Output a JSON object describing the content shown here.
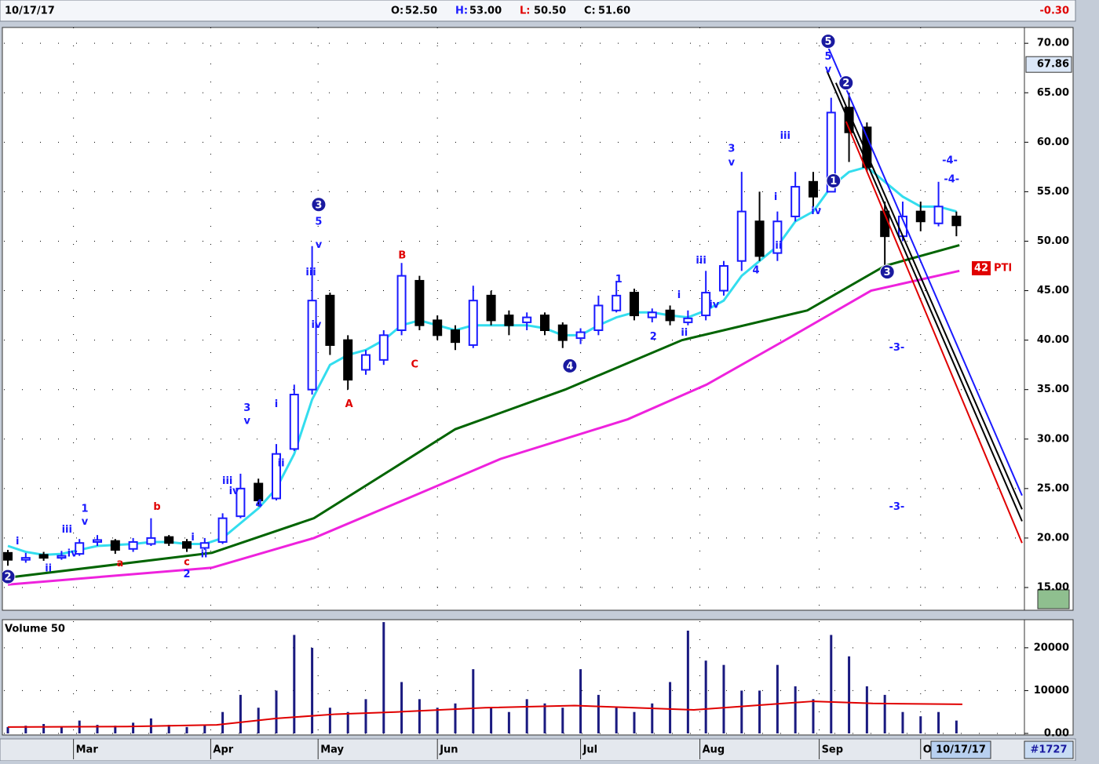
{
  "header": {
    "date": "10/17/17",
    "ohlc": [
      {
        "label": "O:",
        "value": "52.50",
        "color": "#000000"
      },
      {
        "label": "H:",
        "value": "53.00",
        "color": "#1a1aff"
      },
      {
        "label": "L:",
        "value": "50.50",
        "color": "#e00000"
      },
      {
        "label": "C:",
        "value": "51.60",
        "color": "#000000"
      }
    ],
    "change": "-0.30"
  },
  "chart_data": [
    {
      "type": "candlestick",
      "x": [
        0,
        3,
        6,
        9,
        12,
        15,
        18,
        21,
        24,
        27,
        30,
        33,
        36,
        39,
        42,
        45,
        48,
        51,
        54,
        57,
        60,
        63,
        66,
        69,
        72,
        75,
        78,
        81,
        84,
        87,
        90,
        93,
        96,
        99,
        102,
        105,
        108,
        111,
        114,
        117,
        120,
        123,
        126,
        129,
        132,
        135,
        138,
        141,
        144,
        147,
        150,
        153,
        156,
        159
      ],
      "open": [
        18.5,
        17.8,
        18.3,
        18.0,
        18.4,
        19.6,
        19.7,
        18.9,
        19.4,
        20.1,
        19.6,
        19.0,
        19.6,
        22.2,
        25.5,
        24.0,
        29.0,
        35.0,
        44.5,
        40.0,
        37.0,
        38.0,
        41.0,
        46.0,
        42.0,
        41.0,
        39.5,
        44.5,
        42.5,
        41.8,
        42.5,
        41.5,
        40.2,
        41.0,
        43.0,
        44.8,
        42.3,
        43.0,
        41.8,
        42.5,
        45.0,
        48.0,
        52.0,
        48.8,
        52.5,
        56.0,
        55.0,
        63.5,
        61.5,
        53.0,
        50.5,
        53.0,
        51.8,
        52.5
      ],
      "high": [
        18.8,
        18.5,
        18.6,
        18.7,
        19.9,
        20.3,
        19.9,
        20.0,
        22.0,
        20.3,
        19.9,
        20.0,
        22.5,
        26.5,
        26.0,
        29.5,
        35.5,
        49.5,
        44.8,
        40.5,
        39.0,
        41.0,
        47.8,
        46.5,
        42.5,
        41.5,
        45.5,
        45.0,
        43.0,
        42.8,
        42.8,
        41.8,
        41.2,
        44.5,
        46.0,
        45.2,
        43.2,
        43.5,
        43.0,
        47.0,
        48.0,
        57.0,
        55.0,
        53.0,
        57.0,
        57.0,
        64.5,
        65.0,
        62.0,
        54.0,
        54.0,
        54.0,
        56.0,
        53.0
      ],
      "low": [
        17.2,
        17.5,
        17.7,
        17.8,
        18.2,
        19.2,
        18.4,
        18.6,
        19.2,
        19.2,
        18.6,
        18.8,
        19.4,
        22.0,
        23.2,
        23.8,
        28.8,
        34.5,
        38.5,
        35.0,
        36.5,
        37.5,
        40.5,
        41.0,
        40.0,
        39.0,
        39.2,
        41.5,
        40.5,
        41.0,
        40.5,
        39.2,
        39.6,
        40.5,
        42.8,
        42.0,
        41.8,
        41.5,
        41.5,
        42.0,
        44.5,
        47.0,
        48.0,
        48.0,
        52.0,
        53.5,
        55.0,
        58.0,
        57.0,
        47.5,
        50.0,
        51.0,
        51.5,
        50.5
      ],
      "close": [
        17.8,
        18.0,
        18.0,
        18.2,
        19.5,
        19.8,
        18.8,
        19.6,
        20.0,
        19.5,
        19.0,
        19.5,
        22.0,
        25.0,
        23.8,
        28.5,
        34.5,
        44.0,
        39.5,
        36.0,
        38.5,
        40.5,
        46.5,
        41.5,
        40.5,
        39.8,
        44.0,
        42.0,
        41.5,
        42.3,
        41.0,
        40.0,
        40.8,
        43.5,
        44.5,
        42.5,
        42.8,
        42.0,
        42.2,
        44.8,
        47.5,
        53.0,
        48.5,
        52.0,
        55.5,
        54.5,
        63.0,
        61.0,
        57.5,
        50.5,
        52.5,
        52.0,
        53.5,
        51.6
      ],
      "up_color": "#1a1aff",
      "down_color": "#000000",
      "overlays": [
        {
          "color": "#33ddee",
          "values": [
            19.2,
            18.6,
            18.3,
            18.4,
            18.8,
            19.2,
            19.3,
            19.4,
            19.6,
            19.6,
            19.4,
            19.4,
            20.0,
            21.5,
            23.0,
            25.0,
            28.5,
            34.0,
            37.5,
            38.5,
            39.0,
            40.0,
            41.5,
            42.0,
            41.5,
            41.0,
            41.5,
            41.5,
            41.5,
            41.5,
            41.2,
            40.5,
            40.5,
            41.5,
            42.3,
            42.8,
            42.8,
            42.5,
            42.3,
            43.0,
            44.0,
            46.5,
            48.0,
            49.5,
            52.0,
            53.0,
            55.5,
            57.0,
            57.5,
            56.0,
            54.5,
            53.5,
            53.5,
            53.0
          ]
        },
        {
          "color": "#006400",
          "x": [
            0,
            34.2,
            51.3,
            64.5,
            75,
            93.4,
            113,
            134,
            147,
            159.5
          ],
          "values": [
            16.0,
            18.5,
            22.0,
            27.0,
            31.0,
            35.0,
            40.0,
            43.0,
            47.5,
            49.6
          ]
        },
        {
          "color": "#ee22dd",
          "x": [
            0,
            34.2,
            51.3,
            67,
            82.6,
            103.9,
            117.1,
            130.3,
            144.7,
            159.5
          ],
          "values": [
            15.3,
            17.0,
            20.0,
            24.0,
            28.0,
            32.0,
            35.5,
            40.0,
            45.0,
            47.0
          ]
        }
      ],
      "trendlines": [
        {
          "color": "#1a1aff",
          "x": [
            137.5,
            170
          ],
          "y": [
            69.6,
            24.3
          ]
        },
        {
          "color": "#000000",
          "x": [
            137.3,
            170
          ],
          "y": [
            67.2,
            21.7
          ]
        },
        {
          "color": "#000000",
          "x": [
            138.8,
            170
          ],
          "y": [
            66.0,
            22.9
          ]
        },
        {
          "color": "#e00000",
          "x": [
            140.5,
            170
          ],
          "y": [
            62.1,
            19.5
          ]
        }
      ],
      "annotations": [
        {
          "text": "2",
          "x": 0,
          "y": 16.1,
          "color": "#1a1aa0",
          "circled": true
        },
        {
          "text": "i",
          "x": 1.6,
          "y": 19.7,
          "color": "#1a1aff"
        },
        {
          "text": "ii",
          "x": 6.8,
          "y": 17.0,
          "color": "#1a1aff"
        },
        {
          "text": "iii",
          "x": 9.9,
          "y": 20.9,
          "color": "#1a1aff"
        },
        {
          "text": "iv",
          "x": 10.8,
          "y": 18.5,
          "color": "#1a1aff"
        },
        {
          "text": "1",
          "x": 12.9,
          "y": 23.0,
          "color": "#1a1aff"
        },
        {
          "text": "v",
          "x": 12.9,
          "y": 21.7,
          "color": "#1a1aff"
        },
        {
          "text": "a",
          "x": 18.8,
          "y": 17.5,
          "color": "#e00000"
        },
        {
          "text": "b",
          "x": 25,
          "y": 23.2,
          "color": "#e00000"
        },
        {
          "text": "c",
          "x": 30,
          "y": 17.6,
          "color": "#e00000"
        },
        {
          "text": "2",
          "x": 30,
          "y": 16.4,
          "color": "#1a1aff"
        },
        {
          "text": "i",
          "x": 31,
          "y": 20.1,
          "color": "#1a1aff"
        },
        {
          "text": "ii",
          "x": 32.9,
          "y": 18.4,
          "color": "#1a1aff"
        },
        {
          "text": "iii",
          "x": 36.8,
          "y": 25.8,
          "color": "#1a1aff"
        },
        {
          "text": "iv",
          "x": 37.9,
          "y": 24.8,
          "color": "#1a1aff"
        },
        {
          "text": "3",
          "x": 40.1,
          "y": 33.2,
          "color": "#1a1aff"
        },
        {
          "text": "v",
          "x": 40.1,
          "y": 31.9,
          "color": "#1a1aff"
        },
        {
          "text": "4",
          "x": 42.1,
          "y": 23.5,
          "color": "#1a1aff"
        },
        {
          "text": "i",
          "x": 45,
          "y": 33.6,
          "color": "#1a1aff"
        },
        {
          "text": "ii",
          "x": 45.8,
          "y": 27.6,
          "color": "#1a1aff"
        },
        {
          "text": "3",
          "x": 52.1,
          "y": 53.7,
          "color": "#1a1aa0",
          "circled": true
        },
        {
          "text": "5",
          "x": 52.1,
          "y": 52.0,
          "color": "#1a1aff"
        },
        {
          "text": "v",
          "x": 52.1,
          "y": 49.7,
          "color": "#1a1aff"
        },
        {
          "text": "iii",
          "x": 50.8,
          "y": 46.9,
          "color": "#1a1aff"
        },
        {
          "text": "iv",
          "x": 51.7,
          "y": 41.6,
          "color": "#1a1aff"
        },
        {
          "text": "A",
          "x": 57.2,
          "y": 33.6,
          "color": "#e00000"
        },
        {
          "text": "B",
          "x": 66.1,
          "y": 48.6,
          "color": "#e00000"
        },
        {
          "text": "C",
          "x": 68.2,
          "y": 37.6,
          "color": "#e00000"
        },
        {
          "text": "4",
          "x": 94.2,
          "y": 37.4,
          "color": "#1a1aa0",
          "circled": true
        },
        {
          "text": "1",
          "x": 102.4,
          "y": 46.2,
          "color": "#1a1aff"
        },
        {
          "text": "2",
          "x": 108.2,
          "y": 40.4,
          "color": "#1a1aff"
        },
        {
          "text": "i",
          "x": 112.5,
          "y": 44.6,
          "color": "#1a1aff"
        },
        {
          "text": "ii",
          "x": 113.4,
          "y": 40.8,
          "color": "#1a1aff"
        },
        {
          "text": "iii",
          "x": 116.2,
          "y": 48.1,
          "color": "#1a1aff"
        },
        {
          "text": "iv",
          "x": 118.4,
          "y": 43.6,
          "color": "#1a1aff"
        },
        {
          "text": "3",
          "x": 121.3,
          "y": 59.4,
          "color": "#1a1aff"
        },
        {
          "text": "v",
          "x": 121.3,
          "y": 58.0,
          "color": "#1a1aff"
        },
        {
          "text": "4",
          "x": 125.4,
          "y": 47.1,
          "color": "#1a1aff"
        },
        {
          "text": "i",
          "x": 128.7,
          "y": 54.5,
          "color": "#1a1aff"
        },
        {
          "text": "ii",
          "x": 129.2,
          "y": 49.6,
          "color": "#1a1aff"
        },
        {
          "text": "iii",
          "x": 130.3,
          "y": 60.7,
          "color": "#1a1aff"
        },
        {
          "text": "iv",
          "x": 135.5,
          "y": 53.1,
          "color": "#1a1aff"
        },
        {
          "text": "5",
          "x": 137.5,
          "y": 70.2,
          "color": "#1a1aa0",
          "circled": true
        },
        {
          "text": "5",
          "x": 137.5,
          "y": 68.7,
          "color": "#1a1aff"
        },
        {
          "text": "v",
          "x": 137.5,
          "y": 67.4,
          "color": "#1a1aff"
        },
        {
          "text": "2",
          "x": 140.5,
          "y": 66.0,
          "color": "#1a1aa0",
          "circled": true
        },
        {
          "text": "1",
          "x": 138.4,
          "y": 56.1,
          "color": "#1a1aa0",
          "circled": true
        },
        {
          "text": "3",
          "x": 147.4,
          "y": 46.9,
          "color": "#1a1aa0",
          "circled": true
        },
        {
          "text": "-3-",
          "x": 149,
          "y": 39.3,
          "color": "#1a1aff"
        },
        {
          "text": "-3-",
          "x": 149,
          "y": 23.2,
          "color": "#1a1aff"
        },
        {
          "text": "-4-",
          "x": 157.9,
          "y": 58.2,
          "color": "#1a1aff"
        },
        {
          "text": "-4-",
          "x": 158.2,
          "y": 56.3,
          "color": "#1a1aff"
        }
      ],
      "price_marker": 67.86,
      "pti_badge": "42",
      "pti_label": "PTI",
      "xlim": [
        -0.66,
        170.4
      ],
      "xticks": [
        {
          "value": 11,
          "label": "Mar"
        },
        {
          "value": 34,
          "label": "Apr"
        },
        {
          "value": 52,
          "label": "May"
        },
        {
          "value": 72,
          "label": "Jun"
        },
        {
          "value": 96,
          "label": "Jul"
        },
        {
          "value": 116,
          "label": "Aug"
        },
        {
          "value": 136,
          "label": "Sep"
        },
        {
          "value": 153,
          "label": "O"
        }
      ],
      "ylim": [
        12.7,
        71.6
      ],
      "yticks": [
        {
          "value": 15,
          "label": "15.00"
        },
        {
          "value": 20,
          "label": "20.00"
        },
        {
          "value": 25,
          "label": "25.00"
        },
        {
          "value": 30,
          "label": "30.00"
        },
        {
          "value": 35,
          "label": "35.00"
        },
        {
          "value": 40,
          "label": "40.00"
        },
        {
          "value": 45,
          "label": "45.00"
        },
        {
          "value": 50,
          "label": "50.00"
        },
        {
          "value": 55,
          "label": "55.00"
        },
        {
          "value": 60,
          "label": "60.00"
        },
        {
          "value": 65,
          "label": "65.00"
        },
        {
          "value": 70,
          "label": "70.00"
        }
      ],
      "grid": true
    },
    {
      "type": "bar",
      "title": "Volume 50",
      "color": "#1a1a80",
      "x": [
        0,
        3,
        6,
        9,
        12,
        15,
        18,
        21,
        24,
        27,
        30,
        33,
        36,
        39,
        42,
        45,
        48,
        51,
        54,
        57,
        60,
        63,
        66,
        69,
        72,
        75,
        78,
        81,
        84,
        87,
        90,
        93,
        96,
        99,
        102,
        105,
        108,
        111,
        114,
        117,
        120,
        123,
        126,
        129,
        132,
        135,
        138,
        141,
        144,
        147,
        150,
        153,
        156,
        159
      ],
      "values": [
        1500,
        1800,
        2200,
        1500,
        3000,
        2000,
        1800,
        2500,
        3500,
        2000,
        1500,
        2000,
        5000,
        9000,
        6000,
        10000,
        23000,
        20000,
        6000,
        5000,
        8000,
        26000,
        12000,
        8000,
        6000,
        7000,
        15000,
        6000,
        5000,
        8000,
        7000,
        6000,
        15000,
        9000,
        6000,
        5000,
        7000,
        12000,
        24000,
        17000,
        16000,
        10000,
        10000,
        16000,
        11000,
        8000,
        23000,
        18000,
        11000,
        9000,
        5000,
        4000,
        5000,
        3000
      ],
      "overlays": [
        {
          "color": "#e00000",
          "x": [
            0,
            20,
            35,
            45,
            55,
            65,
            80,
            95,
            105,
            115,
            125,
            135,
            145,
            160
          ],
          "values": [
            1500,
            1600,
            2000,
            3500,
            4500,
            5000,
            6000,
            6500,
            6000,
            5500,
            6500,
            7500,
            7000,
            6800
          ]
        }
      ],
      "xlim": [
        -0.66,
        170.4
      ],
      "ylim": [
        0,
        26200
      ],
      "yticks": [
        {
          "value": 0,
          "label": "0.00"
        },
        10000,
        20000
      ],
      "grid": true
    }
  ],
  "footer": {
    "date": "10/17/17",
    "id": "#1727"
  }
}
